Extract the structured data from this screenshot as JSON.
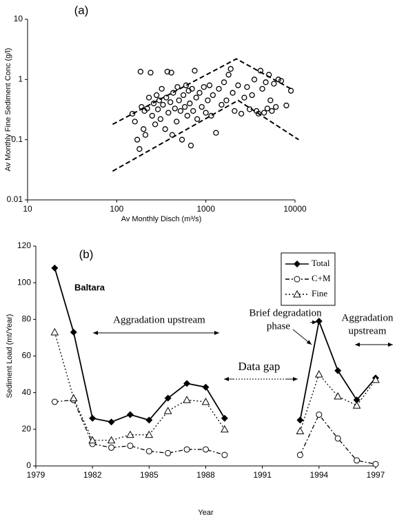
{
  "chart_data": [
    {
      "type": "scatter",
      "title": "(a)",
      "x_label": "Av Monthly Disch (m³/s)",
      "y_label": "Av Monthly  Fine Sediment Conc (g/l)",
      "x_log": true,
      "y_log": true,
      "xlim": [
        10,
        10000
      ],
      "ylim": [
        0.01,
        10
      ],
      "xticks": [
        10,
        100,
        1000,
        10000
      ],
      "yticks": [
        0.01,
        0.1,
        1,
        10
      ],
      "color": "#000000",
      "marker": "open-circle",
      "x": [
        150,
        160,
        170,
        180,
        185,
        190,
        200,
        205,
        210,
        220,
        230,
        240,
        250,
        260,
        270,
        280,
        290,
        300,
        310,
        320,
        330,
        350,
        360,
        370,
        380,
        400,
        410,
        420,
        430,
        450,
        470,
        480,
        500,
        520,
        540,
        560,
        580,
        600,
        620,
        640,
        660,
        680,
        700,
        720,
        750,
        780,
        800,
        850,
        900,
        950,
        1000,
        1050,
        1100,
        1150,
        1200,
        1300,
        1400,
        1500,
        1600,
        1700,
        1800,
        1900,
        2000,
        2100,
        2300,
        2500,
        2700,
        2900,
        3100,
        3300,
        3500,
        3700,
        3900,
        4100,
        4300,
        4500,
        4700,
        4900,
        5100,
        5300,
        5500,
        5800,
        6100,
        6500,
        7000,
        8000,
        9000
      ],
      "values": [
        0.27,
        0.2,
        0.1,
        0.07,
        1.35,
        0.35,
        0.15,
        0.3,
        0.12,
        0.33,
        0.5,
        1.3,
        0.25,
        0.4,
        0.18,
        0.55,
        0.32,
        0.45,
        0.22,
        0.7,
        0.38,
        0.15,
        0.5,
        1.35,
        0.28,
        0.42,
        1.3,
        0.12,
        0.6,
        0.33,
        0.2,
        0.75,
        0.45,
        0.3,
        0.1,
        0.55,
        0.35,
        0.8,
        0.25,
        0.65,
        0.4,
        0.08,
        0.7,
        0.3,
        1.4,
        0.5,
        0.22,
        0.6,
        0.35,
        0.75,
        0.28,
        0.45,
        0.8,
        0.25,
        0.55,
        0.13,
        0.7,
        0.38,
        0.9,
        0.45,
        1.2,
        1.5,
        0.6,
        0.3,
        0.8,
        0.27,
        0.5,
        0.75,
        0.32,
        0.55,
        1.0,
        0.3,
        0.27,
        1.4,
        0.7,
        0.28,
        0.9,
        0.33,
        1.2,
        0.45,
        0.3,
        0.85,
        0.35,
        1.0,
        0.95,
        0.37,
        0.65
      ],
      "reference_lines": [
        {
          "x": [
            90,
            2200,
            9000
          ],
          "values": [
            0.18,
            2.2,
            0.7
          ]
        },
        {
          "x": [
            90,
            2300,
            11000
          ],
          "values": [
            0.03,
            0.45,
            0.1
          ]
        }
      ]
    },
    {
      "type": "line",
      "title": "(b)",
      "x_label": "Year",
      "y_label": "Sediment Load (mt/Year)",
      "xlim": [
        1979,
        1997
      ],
      "xticks": [
        1979,
        1982,
        1985,
        1988,
        1991,
        1994,
        1997
      ],
      "ylim": [
        0,
        120
      ],
      "yticks": [
        0,
        20,
        40,
        60,
        80,
        100,
        120
      ],
      "legend": "top-right",
      "x": [
        1980,
        1981,
        1982,
        1983,
        1984,
        1985,
        1986,
        1987,
        1988,
        1989,
        1990,
        1991,
        1992,
        1993,
        1994,
        1995,
        1996,
        1997
      ],
      "series": [
        {
          "name": "Total",
          "color": "#000000",
          "marker": "diamond",
          "line_style": "solid",
          "values": [
            108,
            73,
            26,
            24,
            28,
            25,
            37,
            45,
            43,
            26,
            null,
            null,
            null,
            25,
            79,
            52,
            36,
            48
          ]
        },
        {
          "name": "C+M",
          "color": "#000000",
          "marker": "circle",
          "line_style": "dashdot",
          "values": [
            35,
            36,
            12,
            10,
            11,
            8,
            7,
            9,
            9,
            6,
            null,
            null,
            null,
            6,
            28,
            15,
            3,
            1
          ]
        },
        {
          "name": "Fine",
          "color": "#000000",
          "marker": "triangle",
          "line_style": "dotted",
          "values": [
            73,
            37,
            14,
            14,
            17,
            17,
            30,
            36,
            35,
            20,
            null,
            null,
            null,
            19,
            50,
            38,
            33,
            47
          ]
        }
      ],
      "annotations": [
        [
          "Baltara"
        ],
        [
          "Aggradation upstream"
        ],
        [
          "Data gap"
        ],
        [
          "Brief degradation",
          "phase"
        ],
        [
          "Aggradation",
          "upstream"
        ]
      ]
    }
  ]
}
